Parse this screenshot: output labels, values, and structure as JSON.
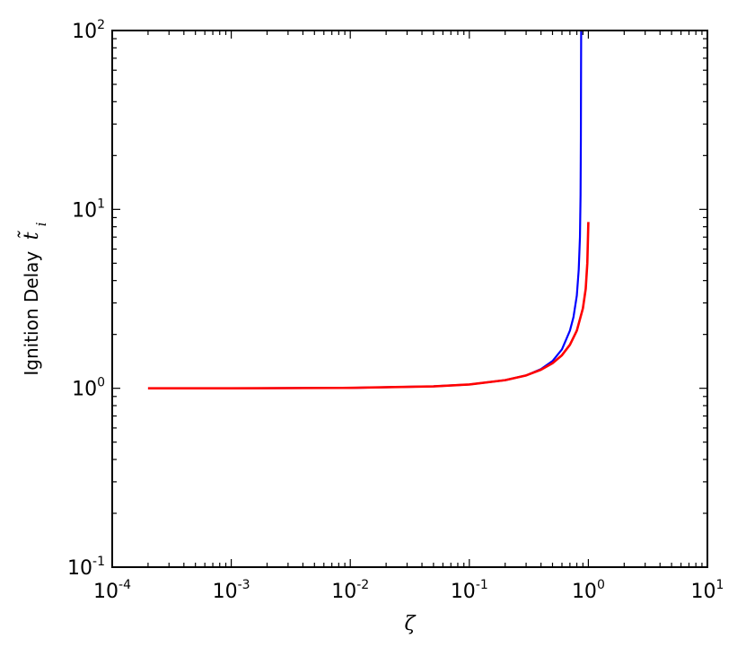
{
  "chart_data": {
    "type": "line",
    "title": "",
    "xlabel": "ζ",
    "ylabel": "Ignition Delay",
    "ylabel_symbol": "t̃",
    "ylabel_subscript": "i",
    "xscale": "log",
    "yscale": "log",
    "xlim": [
      0.0001,
      10
    ],
    "ylim": [
      0.1,
      100
    ],
    "grid": false,
    "x_ticks": [
      {
        "base": "10",
        "exp": "-4"
      },
      {
        "base": "10",
        "exp": "-3"
      },
      {
        "base": "10",
        "exp": "-2"
      },
      {
        "base": "10",
        "exp": "-1"
      },
      {
        "base": "10",
        "exp": "0"
      },
      {
        "base": "10",
        "exp": "1"
      }
    ],
    "y_ticks": [
      {
        "base": "10",
        "exp": "-1"
      },
      {
        "base": "10",
        "exp": "0"
      },
      {
        "base": "10",
        "exp": "1"
      },
      {
        "base": "10",
        "exp": "2"
      }
    ],
    "series": [
      {
        "color": "#0000ff",
        "x": [
          0.0002,
          0.001,
          0.01,
          0.05,
          0.1,
          0.2,
          0.3,
          0.4,
          0.5,
          0.6,
          0.7,
          0.75,
          0.8,
          0.83,
          0.85,
          0.86,
          0.865,
          0.868,
          0.87
        ],
        "y": [
          1.0,
          1.0,
          1.005,
          1.025,
          1.05,
          1.11,
          1.18,
          1.28,
          1.42,
          1.65,
          2.1,
          2.5,
          3.3,
          4.6,
          7.0,
          12,
          25,
          60,
          100
        ]
      },
      {
        "color": "#ff0000",
        "x": [
          0.0002,
          0.001,
          0.01,
          0.05,
          0.1,
          0.2,
          0.3,
          0.4,
          0.5,
          0.6,
          0.7,
          0.8,
          0.9,
          0.95,
          0.98,
          1.0
        ],
        "y": [
          1.0,
          1.0,
          1.005,
          1.025,
          1.05,
          1.11,
          1.18,
          1.27,
          1.38,
          1.53,
          1.75,
          2.1,
          2.8,
          3.6,
          5.0,
          8.5
        ]
      }
    ]
  }
}
